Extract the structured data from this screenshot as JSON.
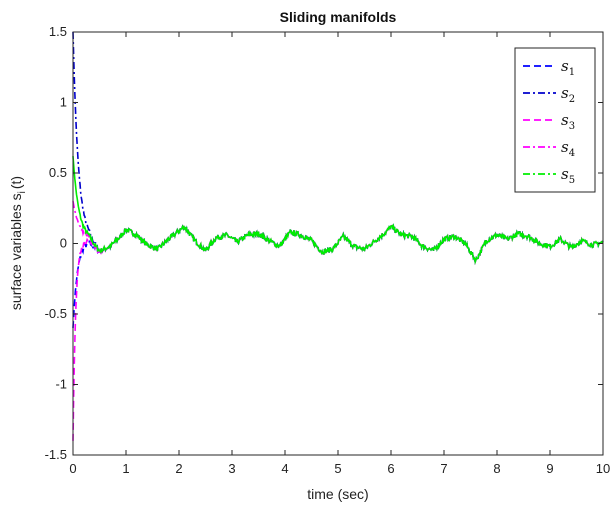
{
  "chart_data": {
    "type": "line",
    "title": "Sliding manifolds",
    "xlabel": "time (sec)",
    "ylabel": "surface variables s",
    "ylabel_sub": "i",
    "ylabel_tail": "(t)",
    "xlim": [
      0,
      10
    ],
    "ylim": [
      -1.5,
      1.5
    ],
    "xticks": [
      0,
      1,
      2,
      3,
      4,
      5,
      6,
      7,
      8,
      9,
      10
    ],
    "yticks": [
      -1.5,
      -1,
      -0.5,
      0,
      0.5,
      1,
      1.5
    ],
    "xtick_labels": [
      "0",
      "1",
      "2",
      "3",
      "4",
      "5",
      "6",
      "7",
      "8",
      "9",
      "10"
    ],
    "ytick_labels": [
      "-1.5",
      "-1",
      "-0.5",
      "0",
      "0.5",
      "1",
      "1.5"
    ],
    "grid": false,
    "legend_position": "top-right",
    "series": [
      {
        "name": "s",
        "sub": "1",
        "color": "#0000ff",
        "dash": "dash",
        "initial": -0.6,
        "transient_rate": 12
      },
      {
        "name": "s",
        "sub": "2",
        "color": "#0000cc",
        "dash": "dashdot",
        "initial": 1.5,
        "transient_rate": 10
      },
      {
        "name": "s",
        "sub": "3",
        "color": "#ff00ff",
        "dash": "dash",
        "initial": -1.4,
        "transient_rate": 20
      },
      {
        "name": "s",
        "sub": "4",
        "color": "#ff00ff",
        "dash": "dashdot",
        "initial": 0.3,
        "transient_rate": 8
      },
      {
        "name": "s",
        "sub": "5",
        "color": "#00ee00",
        "dash": "dashdot",
        "initial": 0.62,
        "transient_rate": 9
      }
    ],
    "steady_state": {
      "t": [
        0.3,
        0.5,
        0.7,
        0.9,
        1.0,
        1.2,
        1.4,
        1.6,
        1.8,
        2.0,
        2.1,
        2.3,
        2.5,
        2.7,
        2.9,
        3.1,
        3.3,
        3.5,
        3.7,
        3.9,
        4.1,
        4.3,
        4.5,
        4.7,
        4.9,
        5.1,
        5.3,
        5.5,
        5.7,
        5.9,
        6.0,
        6.2,
        6.4,
        6.6,
        6.8,
        7.0,
        7.2,
        7.4,
        7.6,
        7.8,
        8.0,
        8.2,
        8.4,
        8.6,
        8.8,
        9.0,
        9.2,
        9.4,
        9.6,
        9.8,
        10.0
      ],
      "value": [
        0.02,
        -0.06,
        -0.02,
        0.05,
        0.1,
        0.06,
        -0.01,
        -0.04,
        0.03,
        0.09,
        0.12,
        0.02,
        -0.05,
        0.04,
        0.06,
        0.01,
        0.06,
        0.07,
        0.02,
        -0.02,
        0.08,
        0.06,
        0.02,
        -0.06,
        -0.04,
        0.05,
        -0.02,
        -0.04,
        0.02,
        0.08,
        0.12,
        0.06,
        0.05,
        -0.02,
        -0.05,
        0.03,
        0.05,
        0.0,
        -0.12,
        0.02,
        0.06,
        0.03,
        0.07,
        0.05,
        0.0,
        -0.02,
        0.03,
        -0.03,
        0.02,
        -0.01,
        0.01
      ]
    }
  }
}
